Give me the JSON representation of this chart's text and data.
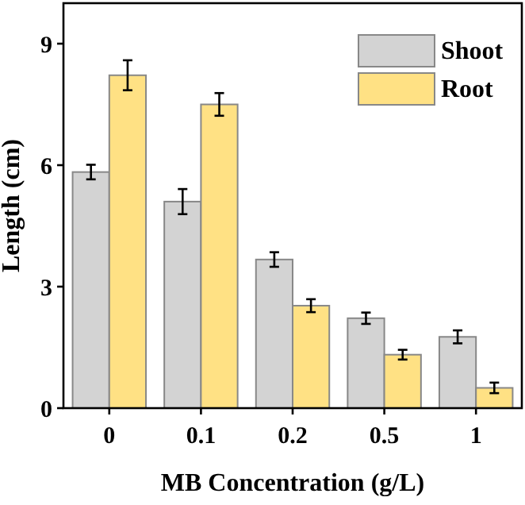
{
  "chart_data": {
    "type": "bar",
    "xlabel": "MB Concentration (g/L)",
    "ylabel": "Length (cm)",
    "categories": [
      "0",
      "0.1",
      "0.2",
      "0.5",
      "1"
    ],
    "series": [
      {
        "name": "Shoot",
        "color": "#d3d3d3",
        "values": [
          5.83,
          5.1,
          3.67,
          2.22,
          1.76
        ],
        "errors": [
          0.18,
          0.31,
          0.18,
          0.14,
          0.16
        ]
      },
      {
        "name": "Root",
        "color": "#ffe184",
        "values": [
          8.22,
          7.5,
          2.53,
          1.32,
          0.5
        ],
        "errors": [
          0.37,
          0.28,
          0.16,
          0.12,
          0.13
        ]
      }
    ],
    "ylim": [
      0,
      10
    ],
    "yticks": [
      0,
      3,
      6,
      9
    ],
    "grid": false,
    "legend": "top right"
  }
}
